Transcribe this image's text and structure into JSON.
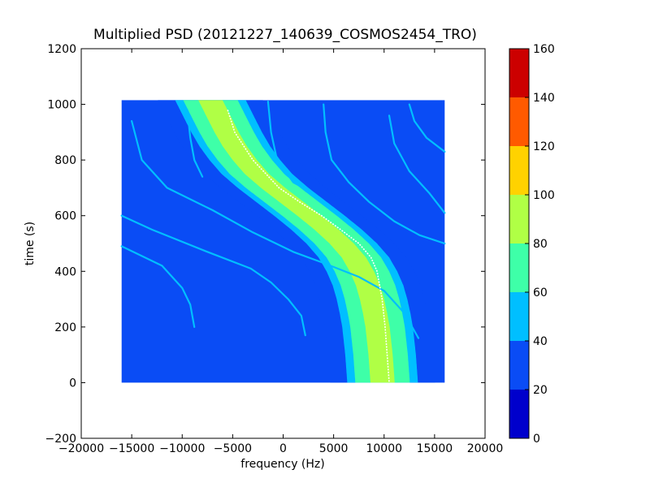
{
  "chart_data": {
    "type": "heatmap",
    "title": "Multiplied PSD (20121227_140639_COSMOS2454_TRO)",
    "xlabel": "frequency (Hz)",
    "ylabel": "time (s)",
    "xlim": [
      -20000,
      20000
    ],
    "ylim": [
      -200,
      1200
    ],
    "xticks": [
      -20000,
      -15000,
      -10000,
      -5000,
      0,
      5000,
      10000,
      15000,
      20000
    ],
    "xtick_labels": [
      "−20000",
      "−15000",
      "−10000",
      "−5000",
      "0",
      "5000",
      "10000",
      "15000",
      "20000"
    ],
    "yticks": [
      -200,
      0,
      200,
      400,
      600,
      800,
      1000,
      1200
    ],
    "ytick_labels": [
      "−200",
      "0",
      "200",
      "400",
      "600",
      "800",
      "1000",
      "1200"
    ],
    "data_extent": {
      "x": [
        -16000,
        16000
      ],
      "y": [
        0,
        1015
      ]
    },
    "colorbar": {
      "range": [
        0,
        160
      ],
      "ticks": [
        0,
        20,
        40,
        60,
        80,
        100,
        120,
        140,
        160
      ],
      "levels": [
        {
          "min": 0,
          "max": 20,
          "color": "#0000cc"
        },
        {
          "min": 20,
          "max": 40,
          "color": "#0a4cf5"
        },
        {
          "min": 40,
          "max": 60,
          "color": "#00bfff"
        },
        {
          "min": 60,
          "max": 80,
          "color": "#3effa8"
        },
        {
          "min": 80,
          "max": 100,
          "color": "#b0ff45"
        },
        {
          "min": 100,
          "max": 120,
          "color": "#ffd200"
        },
        {
          "min": 120,
          "max": 140,
          "color": "#ff5a00"
        },
        {
          "min": 140,
          "max": 160,
          "color": "#cc0000"
        }
      ]
    },
    "main_track": {
      "points": [
        {
          "t": 1015,
          "f": -7200
        },
        {
          "t": 950,
          "f": -6300
        },
        {
          "t": 900,
          "f": -5600
        },
        {
          "t": 850,
          "f": -4800
        },
        {
          "t": 800,
          "f": -3800
        },
        {
          "t": 750,
          "f": -2600
        },
        {
          "t": 700,
          "f": -1000
        },
        {
          "t": 650,
          "f": 800
        },
        {
          "t": 600,
          "f": 2600
        },
        {
          "t": 550,
          "f": 4300
        },
        {
          "t": 500,
          "f": 5800
        },
        {
          "t": 450,
          "f": 7000
        },
        {
          "t": 400,
          "f": 7800
        },
        {
          "t": 350,
          "f": 8400
        },
        {
          "t": 300,
          "f": 8800
        },
        {
          "t": 250,
          "f": 9100
        },
        {
          "t": 200,
          "f": 9350
        },
        {
          "t": 150,
          "f": 9500
        },
        {
          "t": 100,
          "f": 9650
        },
        {
          "t": 50,
          "f": 9750
        },
        {
          "t": 0,
          "f": 9850
        }
      ],
      "band_half_widths_hz": [
        {
          "level": 30,
          "width": 5200
        },
        {
          "level": 50,
          "width": 3500
        },
        {
          "level": 70,
          "width": 2700
        },
        {
          "level": 90,
          "width": 1200
        }
      ],
      "peak_line": [
        {
          "t": 980,
          "f": -5500
        },
        {
          "t": 900,
          "f": -4800
        },
        {
          "t": 800,
          "f": -3000
        },
        {
          "t": 700,
          "f": -400
        },
        {
          "t": 650,
          "f": 1600
        },
        {
          "t": 600,
          "f": 3800
        },
        {
          "t": 550,
          "f": 5700
        },
        {
          "t": 500,
          "f": 7500
        },
        {
          "t": 450,
          "f": 8700
        },
        {
          "t": 400,
          "f": 9300
        },
        {
          "t": 300,
          "f": 9800
        },
        {
          "t": 200,
          "f": 10100
        },
        {
          "t": 100,
          "f": 10300
        },
        {
          "t": 0,
          "f": 10500
        }
      ]
    },
    "secondary_tracks": [
      {
        "level": 50,
        "points": [
          {
            "t": 940,
            "f": -15000
          },
          {
            "t": 800,
            "f": -14000
          },
          {
            "t": 700,
            "f": -11500
          },
          {
            "t": 620,
            "f": -7000
          },
          {
            "t": 540,
            "f": -3000
          },
          {
            "t": 470,
            "f": 1000
          },
          {
            "t": 430,
            "f": 4000
          },
          {
            "t": 380,
            "f": 7500
          },
          {
            "t": 330,
            "f": 10000
          },
          {
            "t": 250,
            "f": 12000
          },
          {
            "t": 160,
            "f": 13400
          }
        ]
      },
      {
        "level": 45,
        "points": [
          {
            "t": 1000,
            "f": 4000
          },
          {
            "t": 900,
            "f": 4200
          },
          {
            "t": 800,
            "f": 4800
          },
          {
            "t": 720,
            "f": 6500
          },
          {
            "t": 650,
            "f": 8500
          },
          {
            "t": 580,
            "f": 11000
          },
          {
            "t": 530,
            "f": 13500
          },
          {
            "t": 500,
            "f": 16000
          }
        ]
      },
      {
        "level": 45,
        "points": [
          {
            "t": 960,
            "f": 10500
          },
          {
            "t": 860,
            "f": 11000
          },
          {
            "t": 760,
            "f": 12500
          },
          {
            "t": 680,
            "f": 14500
          },
          {
            "t": 610,
            "f": 16000
          }
        ]
      },
      {
        "level": 45,
        "points": [
          {
            "t": 1010,
            "f": -1500
          },
          {
            "t": 900,
            "f": -1200
          },
          {
            "t": 800,
            "f": -600
          },
          {
            "t": 720,
            "f": 1000
          },
          {
            "t": 680,
            "f": 3000
          }
        ]
      },
      {
        "level": 40,
        "points": [
          {
            "t": 600,
            "f": -16000
          },
          {
            "t": 550,
            "f": -13000
          },
          {
            "t": 470,
            "f": -7500
          },
          {
            "t": 410,
            "f": -3200
          },
          {
            "t": 360,
            "f": -1200
          },
          {
            "t": 300,
            "f": 500
          },
          {
            "t": 240,
            "f": 1800
          },
          {
            "t": 170,
            "f": 2200
          }
        ]
      },
      {
        "level": 40,
        "points": [
          {
            "t": 490,
            "f": -16000
          },
          {
            "t": 420,
            "f": -12000
          },
          {
            "t": 340,
            "f": -10000
          },
          {
            "t": 280,
            "f": -9200
          },
          {
            "t": 200,
            "f": -8800
          }
        ]
      },
      {
        "level": 40,
        "points": [
          {
            "t": 980,
            "f": -9500
          },
          {
            "t": 880,
            "f": -9200
          },
          {
            "t": 800,
            "f": -8800
          },
          {
            "t": 740,
            "f": -8000
          }
        ]
      },
      {
        "level": 40,
        "points": [
          {
            "t": 1000,
            "f": 12500
          },
          {
            "t": 940,
            "f": 13000
          },
          {
            "t": 880,
            "f": 14200
          },
          {
            "t": 830,
            "f": 16000
          }
        ]
      }
    ]
  }
}
